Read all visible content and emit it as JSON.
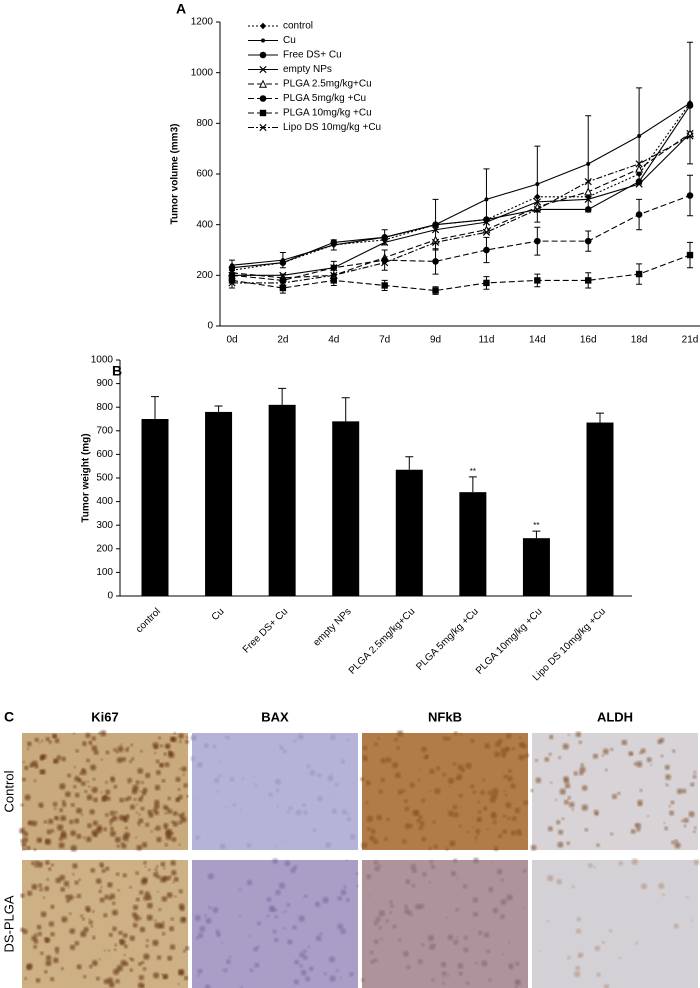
{
  "chart_data": [
    {
      "type": "line",
      "label": "A",
      "ylabel": "Tumor volume (mm3)",
      "categories": [
        "0d",
        "2d",
        "4d",
        "7d",
        "9d",
        "11d",
        "14d",
        "16d",
        "18d",
        "21d"
      ],
      "ylim": [
        0,
        1200
      ],
      "yticks": [
        0,
        200,
        400,
        600,
        800,
        1000,
        1200
      ],
      "legend": "upper left",
      "series": [
        {
          "name": "control",
          "color": "#000000",
          "dash": "dotted",
          "marker": "diamond",
          "values": [
            220,
            250,
            320,
            340,
            400,
            420,
            510,
            510,
            600,
            880
          ]
        },
        {
          "name": "Cu",
          "color": "#000000",
          "dash": "solid",
          "marker": "dot",
          "values": [
            240,
            260,
            320,
            350,
            400,
            500,
            560,
            640,
            750,
            880
          ],
          "errors": [
            20,
            30,
            20,
            30,
            100,
            120,
            150,
            190,
            190,
            240
          ]
        },
        {
          "name": "Free DS+ Cu",
          "color": "#000000",
          "dash": "solid",
          "marker": "circle",
          "values": [
            230,
            250,
            330,
            350,
            400,
            420,
            460,
            460,
            570,
            870
          ]
        },
        {
          "name": "empty NPs",
          "color": "#000000",
          "dash": "solid",
          "marker": "x",
          "values": [
            200,
            200,
            230,
            330,
            380,
            410,
            490,
            500,
            560,
            760
          ]
        },
        {
          "name": "PLGA 2.5mg/kg+Cu",
          "color": "#000000",
          "dash": "dashed",
          "marker": "triangle",
          "values": [
            210,
            190,
            200,
            270,
            340,
            380,
            470,
            530,
            620,
            760
          ]
        },
        {
          "name": "PLGA 5mg/kg +Cu",
          "color": "#000000",
          "dash": "dashed",
          "marker": "circle",
          "values": [
            200,
            180,
            230,
            260,
            255,
            300,
            335,
            335,
            440,
            515
          ],
          "errors": [
            30,
            25,
            25,
            40,
            50,
            50,
            55,
            40,
            60,
            80
          ]
        },
        {
          "name": "PLGA 10mg/kg +Cu",
          "color": "#000000",
          "dash": "dashed",
          "marker": "square",
          "values": [
            180,
            150,
            180,
            160,
            140,
            170,
            180,
            180,
            205,
            280
          ],
          "errors": [
            30,
            20,
            20,
            20,
            15,
            25,
            25,
            30,
            40,
            50
          ]
        },
        {
          "name": "Lipo DS 10mg/kg +Cu",
          "color": "#000000",
          "dash": "dashdot",
          "marker": "x",
          "values": [
            170,
            170,
            200,
            250,
            330,
            370,
            460,
            570,
            640,
            750
          ]
        }
      ]
    },
    {
      "type": "bar",
      "label": "B",
      "ylabel": "Tumor weight  (mg)",
      "categories": [
        "control",
        "Cu",
        "Free DS+ Cu",
        "empty NPs",
        "PLGA 2.5mg/kg+Cu",
        "PLGA 5mg/kg +Cu",
        "PLGA 10mg/kg +Cu",
        "Lipo DS 10mg/kg +Cu"
      ],
      "values": [
        750,
        780,
        810,
        740,
        535,
        440,
        245,
        735
      ],
      "errors": [
        95,
        25,
        70,
        100,
        55,
        65,
        30,
        40
      ],
      "significance": [
        null,
        null,
        null,
        null,
        null,
        "**",
        "**",
        null
      ],
      "color": "#000000",
      "ylim": [
        0,
        1000
      ],
      "yticks": [
        0,
        100,
        200,
        300,
        400,
        500,
        600,
        700,
        800,
        900,
        1000
      ]
    }
  ],
  "panel_c": {
    "label": "C",
    "columns": [
      "Ki67",
      "BAX",
      "NFkB",
      "ALDH"
    ],
    "rows": [
      "Control",
      "DS-PLGA"
    ]
  }
}
